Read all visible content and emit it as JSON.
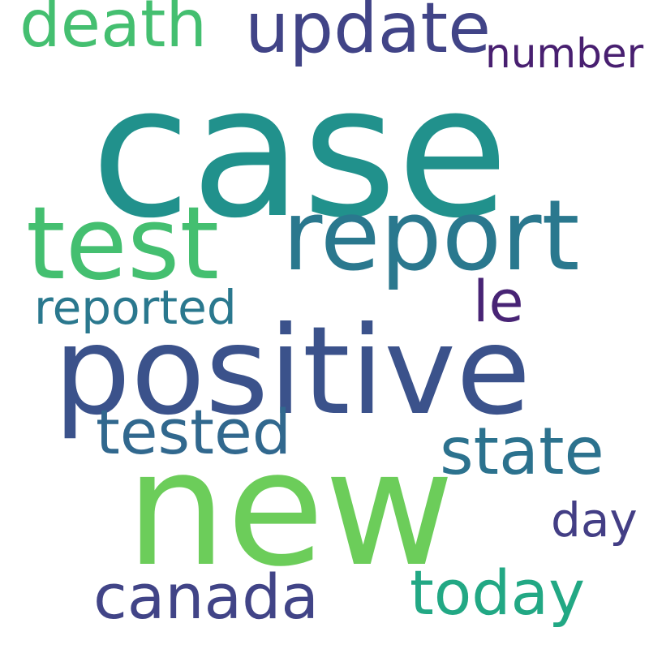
{
  "words": [
    {
      "key": "case",
      "text": "case",
      "color": "#21918c"
    },
    {
      "key": "new",
      "text": "new",
      "color": "#6ccd5a"
    },
    {
      "key": "positive",
      "text": "positive",
      "color": "#3b528b"
    },
    {
      "key": "test",
      "text": "test",
      "color": "#44bf70"
    },
    {
      "key": "report",
      "text": "report",
      "color": "#2a788e"
    },
    {
      "key": "update",
      "text": "update",
      "color": "#414487"
    },
    {
      "key": "death",
      "text": "death",
      "color": "#44bf70"
    },
    {
      "key": "state",
      "text": "state",
      "color": "#2c728e"
    },
    {
      "key": "tested",
      "text": "tested",
      "color": "#31688e"
    },
    {
      "key": "canada",
      "text": "canada",
      "color": "#414487"
    },
    {
      "key": "today",
      "text": "today",
      "color": "#22a884"
    },
    {
      "key": "reported",
      "text": "reported",
      "color": "#2a788e"
    },
    {
      "key": "le",
      "text": "le",
      "color": "#482475"
    },
    {
      "key": "number",
      "text": "number",
      "color": "#481f70"
    },
    {
      "key": "day",
      "text": "day",
      "color": "#433e85"
    }
  ]
}
